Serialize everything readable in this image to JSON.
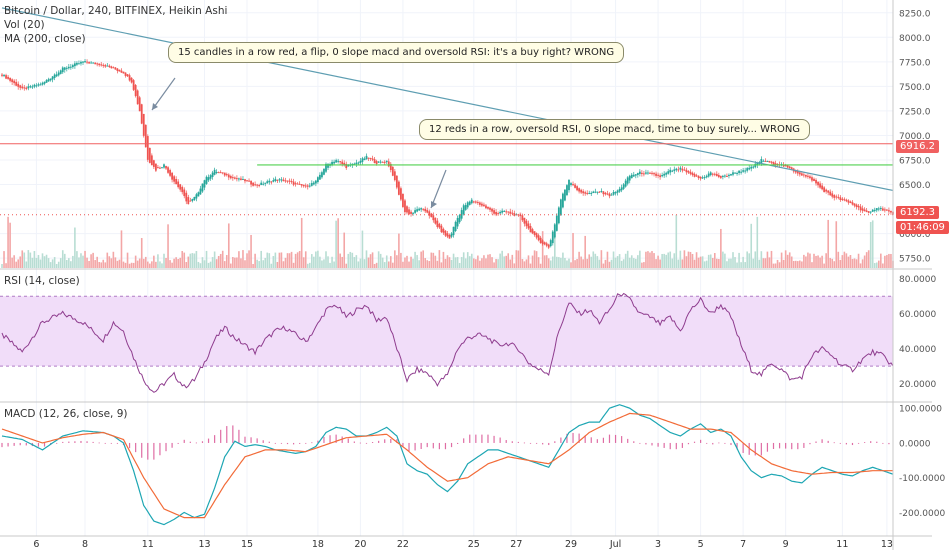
{
  "legend": {
    "title": "Bitcoin / Dollar, 240, BITFINEX, Heikin Ashi",
    "vol": "Vol (20)",
    "ma": "MA (200, close)",
    "rsi": "RSI (14, close)",
    "macd": "MACD (12, 26, close, 9)"
  },
  "annotations": [
    "15 candles in a row red, a flip, 0 slope macd and oversold RSI: it's a buy right? WRONG",
    "12 reds in a row, oversold RSI, 0 slope macd, time to buy surely... WRONG"
  ],
  "price_tags": {
    "line_level": "6916.2",
    "last_price": "6192.3",
    "countdown": "01:46:09"
  },
  "colors": {
    "up": "#26a69a",
    "down": "#ef5350",
    "vol_up": "#b8ddd3",
    "vol_down": "#f3a6a6",
    "ma": "#5e9eb2",
    "hline_red": "#f06060",
    "hline_green": "#50d050",
    "rsi": "#8e3c8e",
    "rsi_band": "#f1ddf9",
    "macd": "#1da6b3",
    "signal": "#f26b38",
    "hist": "#d43c86",
    "last_tag": "#ef5350",
    "countdown_tag": "#ef5350"
  },
  "chart_data": [
    {
      "type": "candlestick",
      "title": "Bitcoin / Dollar, 240, BITFINEX, Heikin Ashi",
      "x_ticks": [
        "6",
        "8",
        "11",
        "13",
        "15",
        "18",
        "20",
        "22",
        "25",
        "27",
        "29",
        "Jul",
        "3",
        "5",
        "7",
        "9",
        "11",
        "13"
      ],
      "y_ticks": [
        "8250.0",
        "8000.0",
        "7750.0",
        "7500.0",
        "7250.0",
        "7000.0",
        "6750.0",
        "6500.0",
        "6250.0",
        "6000.0",
        "5750.0"
      ],
      "ylim": [
        5650,
        8380
      ],
      "close_path": [
        [
          0,
          7620
        ],
        [
          10,
          7470
        ],
        [
          20,
          7530
        ],
        [
          30,
          7680
        ],
        [
          40,
          7750
        ],
        [
          50,
          7720
        ],
        [
          60,
          7640
        ],
        [
          64,
          7550
        ],
        [
          68,
          7250
        ],
        [
          70,
          7000
        ],
        [
          72,
          6760
        ],
        [
          76,
          6650
        ],
        [
          80,
          6700
        ],
        [
          84,
          6560
        ],
        [
          88,
          6450
        ],
        [
          92,
          6300
        ],
        [
          96,
          6390
        ],
        [
          100,
          6550
        ],
        [
          105,
          6640
        ],
        [
          110,
          6600
        ],
        [
          115,
          6560
        ],
        [
          120,
          6540
        ],
        [
          125,
          6490
        ],
        [
          130,
          6520
        ],
        [
          135,
          6550
        ],
        [
          140,
          6540
        ],
        [
          145,
          6500
        ],
        [
          150,
          6480
        ],
        [
          155,
          6530
        ],
        [
          160,
          6700
        ],
        [
          165,
          6750
        ],
        [
          170,
          6680
        ],
        [
          175,
          6720
        ],
        [
          180,
          6780
        ],
        [
          185,
          6720
        ],
        [
          190,
          6740
        ],
        [
          193,
          6600
        ],
        [
          196,
          6400
        ],
        [
          199,
          6220
        ],
        [
          202,
          6200
        ],
        [
          206,
          6260
        ],
        [
          210,
          6220
        ],
        [
          214,
          6100
        ],
        [
          218,
          6000
        ],
        [
          221,
          5950
        ],
        [
          224,
          6120
        ],
        [
          228,
          6280
        ],
        [
          232,
          6340
        ],
        [
          236,
          6300
        ],
        [
          240,
          6250
        ],
        [
          244,
          6200
        ],
        [
          248,
          6230
        ],
        [
          252,
          6200
        ],
        [
          256,
          6170
        ],
        [
          260,
          6050
        ],
        [
          264,
          5950
        ],
        [
          267,
          5900
        ],
        [
          270,
          5860
        ],
        [
          273,
          6100
        ],
        [
          276,
          6350
        ],
        [
          280,
          6550
        ],
        [
          285,
          6420
        ],
        [
          290,
          6410
        ],
        [
          295,
          6430
        ],
        [
          300,
          6390
        ],
        [
          305,
          6450
        ],
        [
          310,
          6590
        ],
        [
          315,
          6620
        ],
        [
          320,
          6610
        ],
        [
          325,
          6580
        ],
        [
          330,
          6640
        ],
        [
          335,
          6660
        ],
        [
          340,
          6600
        ],
        [
          345,
          6560
        ],
        [
          350,
          6620
        ],
        [
          355,
          6570
        ],
        [
          360,
          6610
        ],
        [
          365,
          6640
        ],
        [
          370,
          6670
        ],
        [
          375,
          6750
        ],
        [
          380,
          6720
        ],
        [
          385,
          6700
        ],
        [
          390,
          6650
        ],
        [
          395,
          6600
        ],
        [
          400,
          6550
        ],
        [
          405,
          6450
        ],
        [
          410,
          6380
        ],
        [
          415,
          6340
        ],
        [
          420,
          6300
        ],
        [
          424,
          6250
        ],
        [
          428,
          6200
        ],
        [
          432,
          6270
        ],
        [
          436,
          6240
        ],
        [
          440,
          6200
        ]
      ],
      "ma_200": [
        [
          0,
          8300
        ],
        [
          440,
          6440
        ]
      ],
      "h_lines": [
        6916.2,
        6700
      ],
      "h_segment_green_start_index": 126,
      "last_price": 6192.3
    },
    {
      "type": "bar",
      "title": "Vol (20)",
      "note": "volume bars relative heights, 0..1, sign by candle color"
    },
    {
      "type": "line",
      "title": "RSI (14, close)",
      "y_ticks": [
        "80.0000",
        "60.0000",
        "40.0000",
        "20.0000"
      ],
      "ylim": [
        10,
        85
      ],
      "band": [
        30,
        70
      ],
      "values_path": [
        [
          0,
          48
        ],
        [
          10,
          38
        ],
        [
          20,
          55
        ],
        [
          30,
          60
        ],
        [
          40,
          55
        ],
        [
          50,
          45
        ],
        [
          55,
          55
        ],
        [
          60,
          50
        ],
        [
          65,
          35
        ],
        [
          70,
          22
        ],
        [
          75,
          15
        ],
        [
          80,
          20
        ],
        [
          85,
          25
        ],
        [
          90,
          18
        ],
        [
          95,
          22
        ],
        [
          100,
          32
        ],
        [
          105,
          45
        ],
        [
          110,
          52
        ],
        [
          115,
          46
        ],
        [
          120,
          42
        ],
        [
          125,
          38
        ],
        [
          130,
          45
        ],
        [
          135,
          50
        ],
        [
          140,
          52
        ],
        [
          145,
          48
        ],
        [
          150,
          44
        ],
        [
          155,
          52
        ],
        [
          160,
          62
        ],
        [
          165,
          65
        ],
        [
          170,
          58
        ],
        [
          175,
          62
        ],
        [
          180,
          65
        ],
        [
          185,
          56
        ],
        [
          190,
          58
        ],
        [
          195,
          40
        ],
        [
          200,
          22
        ],
        [
          205,
          28
        ],
        [
          210,
          26
        ],
        [
          215,
          20
        ],
        [
          220,
          25
        ],
        [
          225,
          40
        ],
        [
          230,
          46
        ],
        [
          235,
          48
        ],
        [
          240,
          46
        ],
        [
          245,
          42
        ],
        [
          250,
          43
        ],
        [
          255,
          40
        ],
        [
          260,
          32
        ],
        [
          265,
          28
        ],
        [
          270,
          26
        ],
        [
          275,
          50
        ],
        [
          280,
          66
        ],
        [
          285,
          60
        ],
        [
          290,
          62
        ],
        [
          295,
          55
        ],
        [
          300,
          62
        ],
        [
          305,
          72
        ],
        [
          310,
          68
        ],
        [
          315,
          60
        ],
        [
          320,
          58
        ],
        [
          325,
          54
        ],
        [
          330,
          58
        ],
        [
          335,
          50
        ],
        [
          340,
          62
        ],
        [
          345,
          68
        ],
        [
          350,
          60
        ],
        [
          355,
          65
        ],
        [
          360,
          58
        ],
        [
          365,
          42
        ],
        [
          370,
          28
        ],
        [
          375,
          25
        ],
        [
          380,
          32
        ],
        [
          385,
          28
        ],
        [
          390,
          22
        ],
        [
          395,
          24
        ],
        [
          400,
          36
        ],
        [
          405,
          40
        ],
        [
          410,
          36
        ],
        [
          415,
          30
        ],
        [
          420,
          28
        ],
        [
          425,
          34
        ],
        [
          430,
          38
        ],
        [
          435,
          36
        ],
        [
          440,
          30
        ]
      ]
    },
    {
      "type": "line",
      "title": "MACD (12, 26, close, 9)",
      "y_ticks": [
        "100.0000",
        "0.0000",
        "-100.0000",
        "-200.0000"
      ],
      "ylim": [
        -265,
        115
      ],
      "macd_path": [
        [
          0,
          20
        ],
        [
          10,
          10
        ],
        [
          20,
          -20
        ],
        [
          30,
          20
        ],
        [
          40,
          35
        ],
        [
          50,
          30
        ],
        [
          55,
          20
        ],
        [
          60,
          0
        ],
        [
          65,
          -80
        ],
        [
          70,
          -180
        ],
        [
          75,
          -225
        ],
        [
          80,
          -235
        ],
        [
          85,
          -220
        ],
        [
          90,
          -200
        ],
        [
          95,
          -215
        ],
        [
          100,
          -205
        ],
        [
          105,
          -130
        ],
        [
          110,
          -40
        ],
        [
          115,
          5
        ],
        [
          120,
          -10
        ],
        [
          125,
          -5
        ],
        [
          130,
          -10
        ],
        [
          135,
          -20
        ],
        [
          140,
          -25
        ],
        [
          145,
          -30
        ],
        [
          150,
          -25
        ],
        [
          155,
          -10
        ],
        [
          160,
          30
        ],
        [
          165,
          45
        ],
        [
          170,
          40
        ],
        [
          175,
          20
        ],
        [
          180,
          20
        ],
        [
          185,
          30
        ],
        [
          190,
          45
        ],
        [
          195,
          20
        ],
        [
          200,
          -60
        ],
        [
          205,
          -80
        ],
        [
          210,
          -90
        ],
        [
          215,
          -120
        ],
        [
          220,
          -140
        ],
        [
          225,
          -110
        ],
        [
          230,
          -60
        ],
        [
          235,
          -40
        ],
        [
          240,
          -20
        ],
        [
          245,
          -20
        ],
        [
          250,
          -30
        ],
        [
          255,
          -40
        ],
        [
          260,
          -50
        ],
        [
          265,
          -60
        ],
        [
          270,
          -70
        ],
        [
          275,
          -20
        ],
        [
          280,
          30
        ],
        [
          285,
          50
        ],
        [
          290,
          60
        ],
        [
          295,
          60
        ],
        [
          300,
          100
        ],
        [
          305,
          110
        ],
        [
          310,
          100
        ],
        [
          315,
          80
        ],
        [
          320,
          70
        ],
        [
          325,
          50
        ],
        [
          330,
          30
        ],
        [
          335,
          20
        ],
        [
          340,
          40
        ],
        [
          345,
          55
        ],
        [
          350,
          30
        ],
        [
          355,
          40
        ],
        [
          360,
          20
        ],
        [
          365,
          -40
        ],
        [
          370,
          -80
        ],
        [
          375,
          -100
        ],
        [
          380,
          -90
        ],
        [
          385,
          -95
        ],
        [
          390,
          -110
        ],
        [
          395,
          -115
        ],
        [
          400,
          -90
        ],
        [
          405,
          -70
        ],
        [
          410,
          -80
        ],
        [
          415,
          -90
        ],
        [
          420,
          -95
        ],
        [
          425,
          -80
        ],
        [
          430,
          -70
        ],
        [
          435,
          -80
        ],
        [
          440,
          -90
        ]
      ],
      "signal_path": [
        [
          0,
          40
        ],
        [
          10,
          20
        ],
        [
          20,
          0
        ],
        [
          30,
          15
        ],
        [
          40,
          25
        ],
        [
          50,
          30
        ],
        [
          60,
          10
        ],
        [
          70,
          -100
        ],
        [
          80,
          -190
        ],
        [
          90,
          -215
        ],
        [
          100,
          -215
        ],
        [
          110,
          -120
        ],
        [
          120,
          -40
        ],
        [
          130,
          -20
        ],
        [
          140,
          -20
        ],
        [
          150,
          -25
        ],
        [
          160,
          -5
        ],
        [
          170,
          15
        ],
        [
          180,
          20
        ],
        [
          190,
          25
        ],
        [
          200,
          -20
        ],
        [
          210,
          -70
        ],
        [
          220,
          -110
        ],
        [
          230,
          -100
        ],
        [
          240,
          -60
        ],
        [
          250,
          -40
        ],
        [
          260,
          -50
        ],
        [
          270,
          -60
        ],
        [
          280,
          -20
        ],
        [
          290,
          30
        ],
        [
          300,
          60
        ],
        [
          310,
          85
        ],
        [
          320,
          80
        ],
        [
          330,
          60
        ],
        [
          340,
          40
        ],
        [
          350,
          40
        ],
        [
          360,
          30
        ],
        [
          370,
          -20
        ],
        [
          380,
          -60
        ],
        [
          390,
          -80
        ],
        [
          400,
          -90
        ],
        [
          410,
          -85
        ],
        [
          420,
          -85
        ],
        [
          430,
          -80
        ],
        [
          440,
          -80
        ]
      ]
    }
  ]
}
